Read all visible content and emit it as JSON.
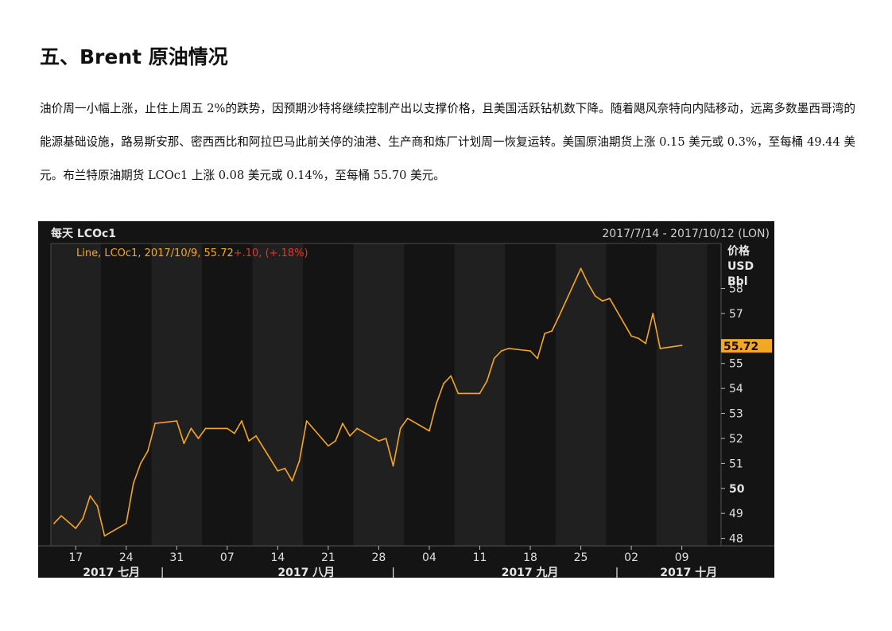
{
  "section": {
    "title": "五、Brent 原油情况",
    "paragraph": "油价周一小幅上涨，止住上周五 2%的跌势，因预期沙特将继续控制产出以支撑价格，且美国活跃钻机数下降。随着飓风奈特向内陆移动，远离多数墨西哥湾的能源基础设施，路易斯安那、密西西比和阿拉巴马此前关停的油港、生产商和炼厂计划周一恢复运转。美国原油期货上涨 0.15 美元或 0.3%，至每桶 49.44 美元。布兰特原油期货 LCOc1 上涨 0.08 美元或 0.14%，至每桶 55.70 美元。"
  },
  "chart_data": {
    "type": "line",
    "header_left": "每天 LCOc1",
    "header_right": "2017/7/14 - 2017/10/12 (LON)",
    "legend_text": "Line, LCOc1, 2017/10/9, 55.72",
    "legend_change": "+.10, (+.18%)",
    "y_unit_lines": [
      "价格",
      "USD",
      "Bbl"
    ],
    "last_value_label": "55.72",
    "ylim": [
      47.7,
      59.8
    ],
    "y_ticks": [
      "48",
      "49",
      "50",
      "51",
      "52",
      "53",
      "54",
      "55",
      "57",
      "58"
    ],
    "y_tick_values": [
      48,
      49,
      50,
      51,
      52,
      53,
      54,
      55,
      57,
      58
    ],
    "x_ticks": [
      "17",
      "24",
      "31",
      "07",
      "14",
      "21",
      "28",
      "04",
      "11",
      "18",
      "25",
      "02",
      "09"
    ],
    "x_tick_days": [
      3,
      10,
      17,
      24,
      31,
      38,
      45,
      52,
      59,
      66,
      73,
      80,
      87
    ],
    "month_labels": [
      "2017 七月",
      "2017 八月",
      "2017 九月",
      "2017 十月"
    ],
    "month_label_days": [
      4,
      31,
      62,
      84
    ],
    "separators": [
      "|",
      "|",
      "|"
    ],
    "separator_days": [
      15,
      47,
      78
    ],
    "colors": {
      "line": "#f5a623",
      "change": "#e8342a",
      "highlight": "#f5a623",
      "bg": "#141414"
    },
    "series": [
      {
        "x": [
          0,
          1,
          3,
          4,
          5,
          6,
          7,
          10,
          11,
          12,
          13,
          14,
          17,
          18,
          19,
          20,
          21,
          24,
          25,
          26,
          27,
          28,
          31,
          32,
          33,
          34,
          35,
          38,
          39,
          40,
          41,
          42,
          45,
          46,
          47,
          48,
          49,
          52,
          53,
          54,
          55,
          56,
          59,
          60,
          61,
          62,
          63,
          66,
          67,
          68,
          69,
          70,
          73,
          74,
          75,
          76,
          77,
          80,
          81,
          82,
          83,
          84,
          87
        ],
        "y": [
          48.6,
          48.9,
          48.4,
          48.8,
          49.7,
          49.3,
          48.1,
          48.6,
          50.2,
          51.0,
          51.5,
          52.6,
          52.7,
          51.8,
          52.4,
          52.0,
          52.4,
          52.4,
          52.2,
          52.7,
          51.9,
          52.1,
          50.7,
          50.8,
          50.3,
          51.1,
          52.7,
          51.7,
          51.9,
          52.6,
          52.1,
          52.4,
          51.9,
          52.0,
          50.9,
          52.4,
          52.8,
          52.3,
          53.4,
          54.2,
          54.5,
          53.8,
          53.8,
          54.3,
          55.2,
          55.5,
          55.6,
          55.5,
          55.2,
          56.2,
          56.3,
          56.9,
          58.8,
          58.2,
          57.7,
          57.5,
          57.6,
          56.1,
          56.0,
          55.8,
          57.0,
          55.6,
          55.72
        ]
      }
    ]
  }
}
